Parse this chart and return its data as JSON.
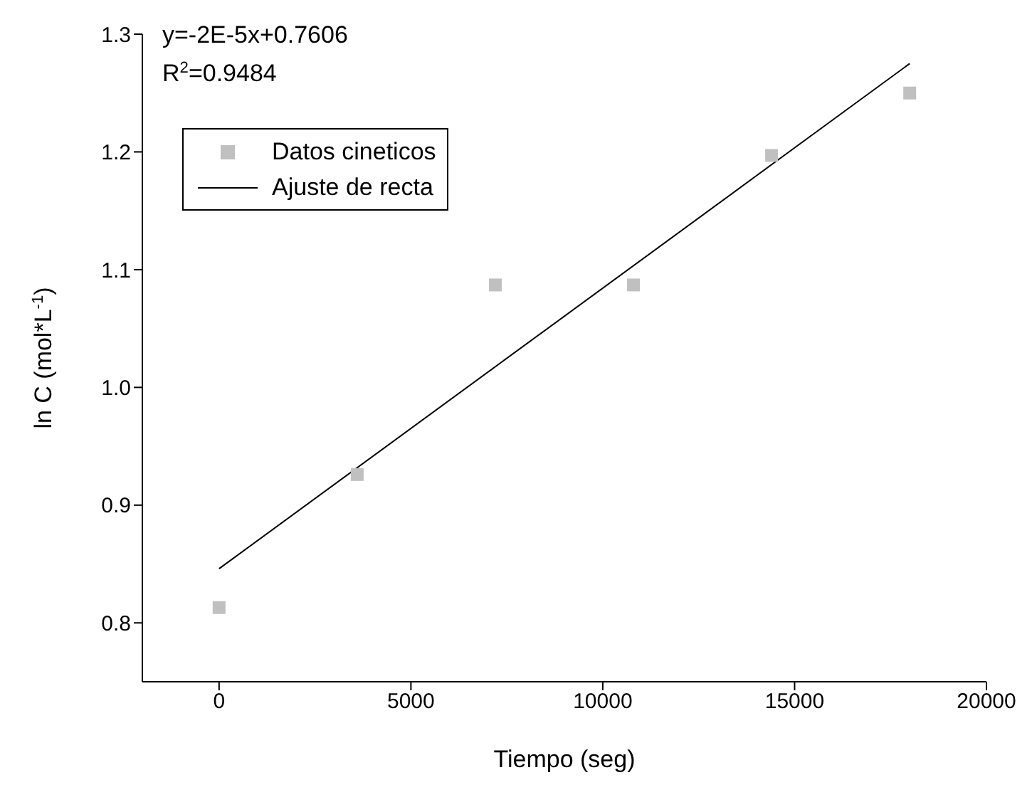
{
  "chart_data": {
    "type": "scatter",
    "xlabel": "Tiempo (seg)",
    "ylabel": "ln C (mol*L$^{-1}$)",
    "annotations": [
      "y=-2E-5x+0.7606",
      "R$^{2}$=0.9484"
    ],
    "series": [
      {
        "name": "Datos cineticos",
        "color": "#c0c0c0",
        "marker": "square",
        "x": [
          0,
          3600,
          7200,
          10800,
          14400,
          18000
        ],
        "values": [
          0.813,
          0.926,
          1.087,
          1.087,
          1.197,
          1.25
        ]
      },
      {
        "name": "Ajuste de recta",
        "type": "line",
        "color": "#000000",
        "marker": "none",
        "line_style": "solid",
        "x": [
          0,
          18000
        ],
        "values": [
          0.846,
          1.275
        ]
      }
    ],
    "xlim": [
      -2000,
      20000
    ],
    "xticks": [
      0,
      5000,
      10000,
      15000,
      20000
    ],
    "ylim": [
      0.75,
      1.3
    ],
    "yticks": [
      0.8,
      0.9,
      {
        "value": 1,
        "label": "1.0"
      },
      1.1,
      1.2,
      1.3
    ],
    "grid": false,
    "legend": "top left"
  }
}
